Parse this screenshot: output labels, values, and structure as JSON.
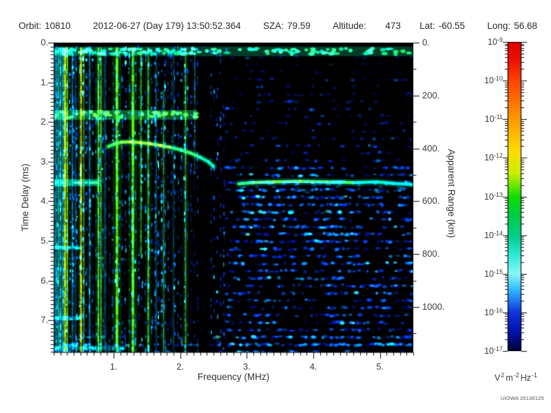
{
  "header": {
    "orbit_label": "Orbit:",
    "orbit_value": "10810",
    "datetime": "2012-06-27 (Day 179) 13:50:52.364",
    "sza_label": "SZA:",
    "sza_value": "79.59",
    "altitude_label": "Altitude:",
    "altitude_value": "473",
    "lat_label": "Lat:",
    "lat_value": "-60.55",
    "long_label": "Long:",
    "long_value": "56.68"
  },
  "footer": {
    "credit": "UIOWA 20130125"
  },
  "chart_data": {
    "type": "heatmap",
    "x_axis": {
      "label": "Frequency (MHz)",
      "range": [
        0.1,
        5.5
      ],
      "ticks": [
        1,
        2,
        3,
        4,
        5
      ],
      "tick_labels": [
        "1.",
        "2.",
        "3.",
        "4.",
        "5."
      ],
      "minor_step": 0.1
    },
    "y_axis": {
      "label": "Time Delay (ms)",
      "range": [
        0,
        7.8125
      ],
      "inverted": true,
      "ticks": [
        0,
        1,
        2,
        3,
        4,
        5,
        6,
        7
      ],
      "tick_labels": [
        "0.",
        "1.",
        "2.",
        "3.",
        "4.",
        "5.",
        "6.",
        "7."
      ],
      "minor_step": 0.1
    },
    "y2_axis": {
      "label": "Apparent Range (km)",
      "range": [
        0,
        1171.9
      ],
      "ticks": [
        0,
        200,
        400,
        600,
        800,
        1000
      ],
      "tick_labels": [
        "0.",
        "200.",
        "400.",
        "600.",
        "800.",
        "1000."
      ],
      "minor_step": 100
    },
    "colorbar": {
      "scale": "log",
      "labels": [
        {
          "base": "10",
          "exp": "-9"
        },
        {
          "base": "10",
          "exp": "-10"
        },
        {
          "base": "10",
          "exp": "-11"
        },
        {
          "base": "10",
          "exp": "-12"
        },
        {
          "base": "10",
          "exp": "-13"
        },
        {
          "base": "10",
          "exp": "-14"
        },
        {
          "base": "10",
          "exp": "-15"
        },
        {
          "base": "10",
          "exp": "-16"
        },
        {
          "base": "10",
          "exp": "-17"
        }
      ],
      "unit_parts": [
        {
          "t": "V"
        },
        {
          "t": "2",
          "sup": true
        },
        {
          "t": "m"
        },
        {
          "t": "-2",
          "sup": true
        },
        {
          "t": "Hz"
        },
        {
          "t": "-1",
          "sup": true
        }
      ],
      "gradient": [
        {
          "stop": 0.0,
          "color": "#dd0000"
        },
        {
          "stop": 0.06,
          "color": "#ee1100"
        },
        {
          "stop": 0.125,
          "color": "#ff4400"
        },
        {
          "stop": 0.25,
          "color": "#ff9900"
        },
        {
          "stop": 0.355,
          "color": "#ffdd00"
        },
        {
          "stop": 0.425,
          "color": "#ccee00"
        },
        {
          "stop": 0.5,
          "color": "#11dd00"
        },
        {
          "stop": 0.56,
          "color": "#00cc44"
        },
        {
          "stop": 0.625,
          "color": "#00cc88"
        },
        {
          "stop": 0.69,
          "color": "#33e8d8"
        },
        {
          "stop": 0.75,
          "color": "#88f8f8"
        },
        {
          "stop": 0.8,
          "color": "#33bbff"
        },
        {
          "stop": 0.875,
          "color": "#1133dd"
        },
        {
          "stop": 0.94,
          "color": "#0011aa"
        },
        {
          "stop": 1.0,
          "color": "#000033"
        }
      ]
    },
    "features": {
      "noise": {
        "seed": 20130125,
        "factor": 5500,
        "palettes": {
          "bright": [
            [
              "#001099",
              0.14
            ],
            [
              "#0030cc",
              0.34
            ],
            [
              "#0055ee",
              0.55
            ],
            [
              "#0080ff",
              0.74
            ],
            [
              "#00b0ff",
              0.88
            ],
            [
              "#30e0ff",
              0.97
            ],
            [
              "#50ffd8",
              1
            ]
          ],
          "mid": [
            [
              "#000d88",
              0.25
            ],
            [
              "#0028bb",
              0.52
            ],
            [
              "#0048dd",
              0.74
            ],
            [
              "#0070f0",
              0.9
            ],
            [
              "#00a0ff",
              0.98
            ],
            [
              "#30d8ff",
              1
            ]
          ],
          "dim": [
            [
              "#000a77",
              0.38
            ],
            [
              "#0020aa",
              0.68
            ],
            [
              "#0038cc",
              0.88
            ],
            [
              "#0060e8",
              0.97
            ],
            [
              "#0090ff",
              1
            ]
          ]
        },
        "regions": [
          {
            "u": [
              0,
              0.065
            ],
            "v": [
              0.012,
              1
            ],
            "d": 0.95,
            "pal": "bright",
            "shape": "col"
          },
          {
            "u": [
              0.065,
              0.37
            ],
            "v": [
              0.012,
              1
            ],
            "d": 0.75,
            "pal": "bright",
            "shape": "col"
          },
          {
            "u": [
              0.37,
              0.48
            ],
            "v": [
              0.012,
              1
            ],
            "d": 0.55,
            "pal": "mid",
            "shape": "col"
          },
          {
            "u": [
              0.48,
              1
            ],
            "v": [
              0.04,
              0.4
            ],
            "d": 0.2,
            "pal": "dim",
            "shape": "row"
          },
          {
            "u": [
              0.48,
              1
            ],
            "v": [
              0.4,
              1
            ],
            "d": 0.52,
            "pal": "mid",
            "shape": "row"
          },
          {
            "u": [
              0.52,
              0.85
            ],
            "v": [
              0.43,
              0.66
            ],
            "d": 0.32,
            "pal": "bright",
            "shape": "row"
          },
          {
            "u": [
              0,
              1
            ],
            "v": [
              0.955,
              1
            ],
            "d": 0.55,
            "pal": "bright",
            "shape": "row"
          }
        ]
      },
      "plasma_harmonic_stripes": [
        {
          "f": 0.115,
          "w": 2,
          "c": "#00e0ff",
          "a": 0.55,
          "t0": 0.12,
          "t1": 7.81
        },
        {
          "f": 0.145,
          "w": 2,
          "c": "#00aaff",
          "a": 0.45,
          "t0": 0.12,
          "t1": 7.81
        },
        {
          "f": 0.175,
          "w": 2,
          "c": "#33ff88",
          "a": 0.5,
          "t0": 0.12,
          "t1": 7.81
        },
        {
          "f": 0.205,
          "w": 2,
          "c": "#00ccff",
          "a": 0.5,
          "t0": 0.12,
          "t1": 7.81
        },
        {
          "f": 0.24,
          "w": 2,
          "c": "#00e0ff",
          "a": 0.45,
          "t0": 0.12,
          "t1": 7.81
        },
        {
          "f": 0.27,
          "w": 2.5,
          "c": "#b8ee00",
          "a": 0.85,
          "t0": 0.12,
          "t1": 7.81
        },
        {
          "f": 0.305,
          "w": 2,
          "c": "#55ee00",
          "a": 0.6,
          "t0": 0.12,
          "t1": 7.81
        },
        {
          "f": 0.38,
          "w": 2,
          "c": "#00ccff",
          "a": 0.5,
          "t0": 0.12,
          "t1": 7.81
        },
        {
          "f": 0.43,
          "w": 1.5,
          "c": "#0099ff",
          "a": 0.4,
          "t0": 0.12,
          "t1": 7.81
        },
        {
          "f": 0.51,
          "w": 2.5,
          "c": "#b0e800",
          "a": 0.8,
          "t0": 0.12,
          "t1": 7.81
        },
        {
          "f": 0.555,
          "w": 1.5,
          "c": "#33dd44",
          "a": 0.45,
          "t0": 0.12,
          "t1": 7.81
        },
        {
          "f": 0.64,
          "w": 2,
          "c": "#00ccee",
          "a": 0.45,
          "t0": 0.12,
          "t1": 7.81
        },
        {
          "f": 0.77,
          "w": 2.5,
          "c": "#44ee22",
          "a": 0.75,
          "t0": 0.12,
          "t1": 7.81
        },
        {
          "f": 0.81,
          "w": 2,
          "c": "#33dd55",
          "a": 0.6,
          "t0": 0.12,
          "t1": 7.81
        },
        {
          "f": 0.87,
          "w": 1.5,
          "c": "#00bbee",
          "a": 0.4,
          "t0": 0.12,
          "t1": 7.81
        },
        {
          "f": 1.05,
          "w": 3.5,
          "c": "#44ff11",
          "a": 0.92,
          "t0": 0.12,
          "t1": 7.81
        },
        {
          "f": 1.29,
          "w": 3.5,
          "c": "#44ff11",
          "a": 0.88,
          "t0": 0.12,
          "t1": 7.81
        },
        {
          "f": 1.41,
          "w": 2,
          "c": "#33ee33",
          "a": 0.6,
          "t0": 0.12,
          "t1": 5.4
        },
        {
          "f": 1.52,
          "w": 2.5,
          "c": "#33ee33",
          "a": 0.65,
          "t0": 0.12,
          "t1": 7.81
        },
        {
          "f": 1.64,
          "w": 1.5,
          "c": "#00ccdd",
          "a": 0.35,
          "t0": 0.12,
          "t1": 7.81
        },
        {
          "f": 1.75,
          "w": 2,
          "c": "#22dd66",
          "a": 0.5,
          "t0": 1.2,
          "t1": 7.81
        },
        {
          "f": 1.9,
          "w": 1.5,
          "c": "#00bbdd",
          "a": 0.3,
          "t0": 0.12,
          "t1": 7.81
        },
        {
          "f": 2.08,
          "w": 2,
          "c": "#33ee44",
          "a": 0.6,
          "t0": 0.12,
          "t1": 7.81
        },
        {
          "f": 2.22,
          "w": 1.5,
          "c": "#00ccbb",
          "a": 0.35,
          "t0": 0.12,
          "t1": 3.2
        }
      ],
      "dark_gaps": [
        {
          "f0": 0.61,
          "f1": 1.0,
          "t0": 0.45,
          "t1": 1.72,
          "a": 0.62
        },
        {
          "f0": 0.85,
          "f1": 0.98,
          "t0": 0.45,
          "t1": 7.81,
          "a": 0.38
        },
        {
          "f0": 1.11,
          "f1": 1.24,
          "t0": 2.0,
          "t1": 7.81,
          "a": 0.42
        },
        {
          "f0": 1.33,
          "f1": 1.39,
          "t0": 0.45,
          "t1": 7.81,
          "a": 0.35
        },
        {
          "f0": 1.8,
          "f1": 1.9,
          "t0": 0.45,
          "t1": 7.81,
          "a": 0.4
        },
        {
          "f0": 1.94,
          "f1": 2.04,
          "t0": 3.2,
          "t1": 7.81,
          "a": 0.4
        },
        {
          "f0": 2.1,
          "f1": 2.26,
          "t0": 3.3,
          "t1": 7.81,
          "a": 0.55
        },
        {
          "f0": 2.27,
          "f1": 2.46,
          "t0": 0.38,
          "t1": 7.81,
          "a": 0.93
        },
        {
          "f0": 0.68,
          "f1": 0.95,
          "t0": 3.95,
          "t1": 7.81,
          "a": 0.45
        },
        {
          "f0": 3.55,
          "f1": 5.5,
          "t0": 0.52,
          "t1": 1.45,
          "a": 0.5
        },
        {
          "f0": 4.25,
          "f1": 5.5,
          "t0": 1.45,
          "t1": 2.6,
          "a": 0.35
        },
        {
          "f0": 2.6,
          "f1": 3.2,
          "t0": 0.52,
          "t1": 1.3,
          "a": 0.35
        },
        {
          "f0": 2.3,
          "f1": 5.5,
          "t0": 0.33,
          "t1": 0.78,
          "a": 0.5
        }
      ],
      "top_band": {
        "t0": 0.1,
        "t1": 0.34,
        "f0": 0.1,
        "f1": 5.5,
        "base_color": "#00cc88",
        "blob_colors": [
          "#22ee66",
          "#00e0a0",
          "#44ffaa"
        ]
      },
      "band_1p8ms": {
        "t0": 1.7,
        "t1": 1.94,
        "f0": 0.1,
        "f1": 2.26,
        "color": "#22cc55",
        "blob_color": "#55ee33"
      },
      "ionosphere_echo_trace": [
        [
          0.92,
          2.62
        ],
        [
          1.02,
          2.55
        ],
        [
          1.12,
          2.51
        ],
        [
          1.25,
          2.5
        ],
        [
          1.4,
          2.52
        ],
        [
          1.55,
          2.55
        ],
        [
          1.7,
          2.59
        ],
        [
          1.85,
          2.64
        ],
        [
          2.0,
          2.7
        ],
        [
          2.15,
          2.78
        ],
        [
          2.3,
          2.89
        ],
        [
          2.42,
          3.0
        ],
        [
          2.5,
          3.12
        ]
      ],
      "surface_reflection_trace": [
        [
          2.88,
          3.56
        ],
        [
          3.1,
          3.53
        ],
        [
          3.4,
          3.51
        ],
        [
          3.8,
          3.5
        ],
        [
          4.2,
          3.51
        ],
        [
          4.6,
          3.53
        ],
        [
          4.95,
          3.51
        ],
        [
          5.2,
          3.55
        ],
        [
          5.5,
          3.58
        ]
      ],
      "surface_left_segment": {
        "f0": 0.1,
        "f1": 0.8,
        "t0": 3.44,
        "t1": 3.62,
        "color": "#00ddaa"
      },
      "echo_rows": [
        {
          "t": 5.17,
          "f0": 0.1,
          "f1": 0.55
        },
        {
          "t": 6.95,
          "f0": 0.1,
          "f1": 0.5
        },
        {
          "t": 7.7,
          "f0": 0.1,
          "f1": 1.15
        }
      ]
    }
  }
}
